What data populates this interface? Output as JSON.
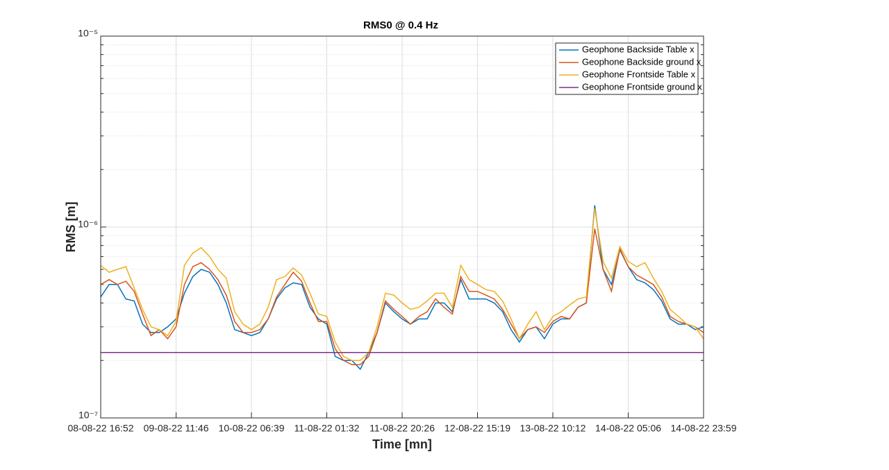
{
  "chart_data": {
    "type": "line",
    "title": "RMS0 @ 0.4 Hz",
    "xlabel": "Time [mn]",
    "ylabel": "RMS [m]",
    "x": [
      0,
      126,
      252,
      378,
      504,
      630,
      756,
      881,
      1007,
      1133,
      1259,
      1385,
      1511,
      1637,
      1763,
      1889,
      2015,
      2141,
      2267,
      2393,
      2519,
      2645,
      2770,
      2896,
      3022,
      3148,
      3274,
      3400,
      3526,
      3652,
      3778,
      3904,
      4030,
      4156,
      4282,
      4408,
      4534,
      4659,
      4785,
      4911,
      5037,
      5163,
      5289,
      5415,
      5541,
      5667,
      5793,
      5919,
      6045,
      6171,
      6297,
      6423,
      6548,
      6674,
      6800,
      6926,
      7052,
      7178,
      7304,
      7430,
      7556,
      7682,
      7808,
      7934,
      8060,
      8186,
      8312,
      8437,
      8563,
      8689,
      8815,
      8941,
      9067
    ],
    "series": [
      {
        "name": "Geophone Backside Table x",
        "color": "#0072bd",
        "values": [
          4.3e-07,
          5e-07,
          5e-07,
          4.2e-07,
          4.1e-07,
          3.1e-07,
          2.8e-07,
          2.8e-07,
          3e-07,
          3.3e-07,
          4.5e-07,
          5.5e-07,
          6e-07,
          5.8e-07,
          5e-07,
          4e-07,
          2.9e-07,
          2.8e-07,
          2.7e-07,
          2.8e-07,
          3.3e-07,
          4.2e-07,
          4.8e-07,
          5.1e-07,
          5e-07,
          3.8e-07,
          3.3e-07,
          3.1e-07,
          2.1e-07,
          2e-07,
          2e-07,
          1.8e-07,
          2.2e-07,
          2.8e-07,
          4e-07,
          3.6e-07,
          3.3e-07,
          3.1e-07,
          3.3e-07,
          3.3e-07,
          4e-07,
          4e-07,
          3.6e-07,
          5.3e-07,
          4.2e-07,
          4.2e-07,
          4.2e-07,
          4e-07,
          3.6e-07,
          2.9e-07,
          2.5e-07,
          2.9e-07,
          3e-07,
          2.6e-07,
          3.1e-07,
          3.3e-07,
          3.3e-07,
          3.8e-07,
          4e-07,
          1.3e-06,
          6e-07,
          5e-07,
          7.6e-07,
          6.2e-07,
          5.3e-07,
          5.1e-07,
          4.7e-07,
          4.1e-07,
          3.3e-07,
          3.1e-07,
          3.1e-07,
          2.9e-07,
          3e-07
        ]
      },
      {
        "name": "Geophone Backside ground x",
        "color": "#d95319",
        "values": [
          5e-07,
          5.3e-07,
          5e-07,
          5.2e-07,
          4.6e-07,
          3.5e-07,
          2.7e-07,
          2.9e-07,
          2.6e-07,
          3e-07,
          5e-07,
          6.2e-07,
          6.5e-07,
          6e-07,
          5.3e-07,
          4.4e-07,
          3.2e-07,
          2.8e-07,
          2.8e-07,
          2.9e-07,
          3.3e-07,
          4.3e-07,
          5e-07,
          5.8e-07,
          5.2e-07,
          4e-07,
          3.2e-07,
          3.2e-07,
          2.3e-07,
          2e-07,
          1.9e-07,
          1.9e-07,
          2.1e-07,
          2.8e-07,
          4.1e-07,
          3.7e-07,
          3.4e-07,
          3.1e-07,
          3.4e-07,
          3.6e-07,
          4.2e-07,
          3.8e-07,
          3.5e-07,
          5.5e-07,
          4.6e-07,
          4.6e-07,
          4.4e-07,
          4.2e-07,
          3.7e-07,
          3.1e-07,
          2.6e-07,
          2.9e-07,
          3e-07,
          2.8e-07,
          3.2e-07,
          3.4e-07,
          3.3e-07,
          3.8e-07,
          4e-07,
          9.8e-07,
          6e-07,
          4.6e-07,
          7.7e-07,
          6.2e-07,
          5.6e-07,
          5.3e-07,
          5e-07,
          4.3e-07,
          3.4e-07,
          3.2e-07,
          3.1e-07,
          3e-07,
          2.8e-07
        ]
      },
      {
        "name": "Geophone Frontside Table x",
        "color": "#edb120",
        "values": [
          6.3e-07,
          5.8e-07,
          6e-07,
          6.2e-07,
          4.8e-07,
          3.7e-07,
          3e-07,
          2.9e-07,
          2.7e-07,
          3.2e-07,
          6.3e-07,
          7.3e-07,
          7.8e-07,
          7e-07,
          6e-07,
          5.4e-07,
          3.6e-07,
          3.1e-07,
          2.9e-07,
          3.1e-07,
          3.8e-07,
          5.3e-07,
          5.5e-07,
          6.1e-07,
          5.6e-07,
          4.5e-07,
          3.5e-07,
          3.4e-07,
          2.5e-07,
          2.1e-07,
          2e-07,
          2e-07,
          2.2e-07,
          3e-07,
          4.5e-07,
          4.4e-07,
          4e-07,
          3.7e-07,
          3.8e-07,
          4.1e-07,
          4.5e-07,
          4.5e-07,
          3.8e-07,
          6.3e-07,
          5.3e-07,
          5e-07,
          4.7e-07,
          4.6e-07,
          4.1e-07,
          3.3e-07,
          2.6e-07,
          3.1e-07,
          3.6e-07,
          2.9e-07,
          3.4e-07,
          3.6e-07,
          3.9e-07,
          4.2e-07,
          4.3e-07,
          1.25e-06,
          6.6e-07,
          5.4e-07,
          7.9e-07,
          6.6e-07,
          6.2e-07,
          6.5e-07,
          5.4e-07,
          4.6e-07,
          3.7e-07,
          3.4e-07,
          3.1e-07,
          3e-07,
          2.6e-07
        ]
      },
      {
        "name": "Geophone Frontside ground x",
        "color": "#7e2f8e",
        "values": [
          2.2e-07,
          2.2e-07,
          2.2e-07,
          2.2e-07,
          2.2e-07,
          2.2e-07,
          2.2e-07,
          2.2e-07,
          2.2e-07,
          2.2e-07,
          2.2e-07,
          2.2e-07,
          2.2e-07,
          2.2e-07,
          2.2e-07,
          2.2e-07,
          2.2e-07,
          2.2e-07,
          2.2e-07,
          2.2e-07,
          2.2e-07,
          2.2e-07,
          2.2e-07,
          2.2e-07,
          2.2e-07,
          2.2e-07,
          2.2e-07,
          2.2e-07,
          2.2e-07,
          2.2e-07,
          2.2e-07,
          2.2e-07,
          2.2e-07,
          2.2e-07,
          2.2e-07,
          2.2e-07,
          2.2e-07,
          2.2e-07,
          2.2e-07,
          2.2e-07,
          2.2e-07,
          2.2e-07,
          2.2e-07,
          2.2e-07,
          2.2e-07,
          2.2e-07,
          2.2e-07,
          2.2e-07,
          2.2e-07,
          2.2e-07,
          2.2e-07,
          2.2e-07,
          2.2e-07,
          2.2e-07,
          2.2e-07,
          2.2e-07,
          2.2e-07,
          2.2e-07,
          2.2e-07,
          2.2e-07,
          2.2e-07,
          2.2e-07,
          2.2e-07,
          2.2e-07,
          2.2e-07,
          2.2e-07,
          2.2e-07,
          2.2e-07,
          2.2e-07,
          2.2e-07,
          2.2e-07,
          2.2e-07,
          2.2e-07
        ]
      }
    ],
    "xlim": [
      0,
      9067
    ],
    "xticks": [
      {
        "value": 0,
        "label": "08-08-22 16:52"
      },
      {
        "value": 1134,
        "label": "09-08-22 11:46"
      },
      {
        "value": 2267,
        "label": "10-08-22 06:39"
      },
      {
        "value": 3400,
        "label": "11-08-22 01:32"
      },
      {
        "value": 4534,
        "label": "11-08-22 20:26"
      },
      {
        "value": 5667,
        "label": "12-08-22 15:19"
      },
      {
        "value": 6800,
        "label": "13-08-22 10:12"
      },
      {
        "value": 7934,
        "label": "14-08-22 05:06"
      },
      {
        "value": 9067,
        "label": "14-08-22 23:59"
      }
    ],
    "ylim": [
      1e-07,
      1e-05
    ],
    "yticks": [
      {
        "value": 1e-07,
        "label": "10⁻⁷"
      },
      {
        "value": 1e-06,
        "label": "10⁻⁶"
      },
      {
        "value": 1e-05,
        "label": "10⁻⁵"
      }
    ],
    "ylog": true,
    "grid": true,
    "minor_grid": true,
    "legend": "northeast"
  }
}
